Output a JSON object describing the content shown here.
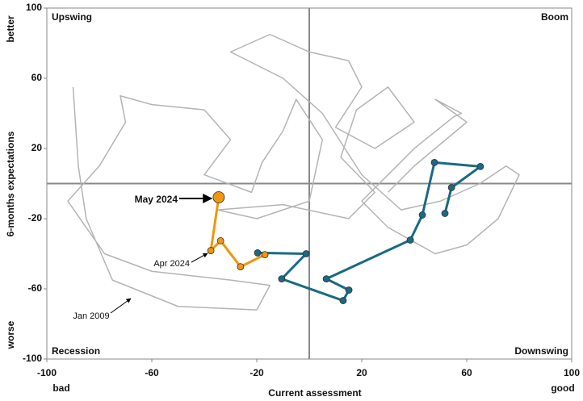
{
  "chart_data": {
    "type": "line",
    "xlabel": "Current assessment",
    "ylabel": "6-months expectations",
    "x_end_labels": [
      "bad",
      "good"
    ],
    "y_end_labels": [
      "worse",
      "better"
    ],
    "quadrant_labels": [
      "Upswing",
      "Boom",
      "Recession",
      "Downswing"
    ],
    "annotations": [
      "May 2024",
      "Apr 2024",
      "Jan 2009"
    ],
    "xlim": [
      -100,
      100
    ],
    "ylim": [
      -100,
      100
    ],
    "xticks": [
      -100,
      -60,
      -20,
      20,
      60,
      100
    ],
    "yticks": [
      -100,
      -60,
      -20,
      20,
      60,
      100
    ],
    "series": [
      {
        "color": "#b4b4b4",
        "x": [
          -90,
          -88,
          -85,
          -75,
          -50,
          -20,
          -15,
          -30,
          -60,
          -78,
          -92,
          -80,
          -70,
          -72,
          -60,
          -40,
          -30,
          -40,
          -22,
          -18,
          -10,
          -5,
          5,
          0,
          -20,
          -35,
          -10,
          15,
          25,
          12,
          18,
          30,
          40,
          25,
          10,
          20,
          15,
          0,
          -15,
          -30,
          -10,
          5,
          20,
          35,
          50,
          65,
          75,
          80,
          72,
          60,
          48,
          30,
          20,
          40,
          55,
          58,
          48,
          60,
          40,
          30
        ],
        "values": [
          55,
          10,
          -20,
          -55,
          -70,
          -72,
          -58,
          -55,
          -50,
          -40,
          -10,
          10,
          35,
          50,
          45,
          42,
          25,
          5,
          -5,
          12,
          30,
          48,
          25,
          -10,
          -20,
          -15,
          -12,
          -20,
          -5,
          15,
          42,
          55,
          35,
          20,
          32,
          55,
          70,
          75,
          85,
          75,
          60,
          40,
          5,
          -15,
          -10,
          0,
          10,
          5,
          -20,
          -35,
          -40,
          -25,
          -10,
          20,
          38,
          40,
          48,
          35,
          10,
          -5
        ]
      },
      {
        "color": "#1a6a84",
        "x": [
          51.7,
          54.2,
          65.2,
          47.7,
          43.1,
          38.5,
          6.5,
          15.1,
          12.9,
          -10.5,
          -1.2,
          -19.7
        ],
        "values": [
          -17,
          -2.3,
          9.7,
          12,
          -17.9,
          -32.2,
          -54.3,
          -60.7,
          -66.7,
          -54.3,
          -40,
          -39.5
        ]
      },
      {
        "color": "#f0960f",
        "x": [
          -16.9,
          -26.2,
          -33.8,
          -37.5,
          -34.5
        ],
        "values": [
          -40.5,
          -47.4,
          -32.6,
          -38.2,
          -7.8
        ]
      }
    ]
  }
}
